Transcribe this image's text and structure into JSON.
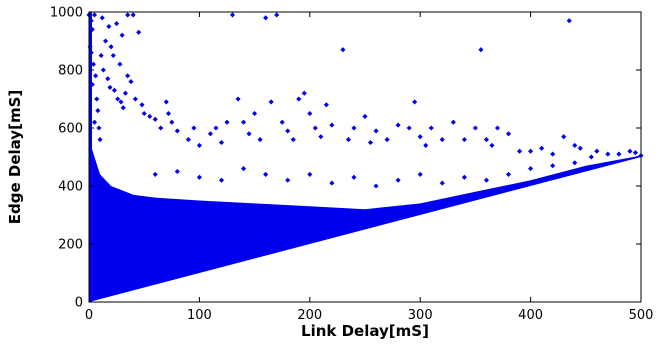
{
  "chart_data": {
    "type": "scatter",
    "title": "",
    "xlabel": "Link Delay[mS]",
    "ylabel": "Edge Delay[mS]",
    "xlim": [
      0,
      500
    ],
    "ylim": [
      0,
      1000
    ],
    "xticks": [
      0,
      100,
      200,
      300,
      400,
      500
    ],
    "yticks": [
      0,
      200,
      400,
      600,
      800,
      1000
    ],
    "grid": false,
    "legend": "none",
    "series": [
      {
        "marker_color": "#0000ee",
        "description_of_density": "points fill region between y=x and upper envelope",
        "points": [
          [
            0,
            990
          ],
          [
            2,
            970
          ],
          [
            3,
            940
          ],
          [
            5,
            990
          ],
          [
            1,
            880
          ],
          [
            2,
            860
          ],
          [
            4,
            820
          ],
          [
            6,
            780
          ],
          [
            3,
            750
          ],
          [
            7,
            700
          ],
          [
            8,
            660
          ],
          [
            5,
            620
          ],
          [
            9,
            600
          ],
          [
            10,
            560
          ],
          [
            12,
            980
          ],
          [
            18,
            950
          ],
          [
            25,
            960
          ],
          [
            30,
            920
          ],
          [
            40,
            990
          ],
          [
            45,
            930
          ],
          [
            20,
            880
          ],
          [
            22,
            850
          ],
          [
            28,
            820
          ],
          [
            35,
            780
          ],
          [
            38,
            760
          ],
          [
            33,
            720
          ],
          [
            42,
            700
          ],
          [
            48,
            680
          ],
          [
            50,
            650
          ],
          [
            55,
            640
          ],
          [
            60,
            630
          ],
          [
            65,
            600
          ],
          [
            70,
            690
          ],
          [
            72,
            650
          ],
          [
            75,
            620
          ],
          [
            80,
            590
          ],
          [
            90,
            560
          ],
          [
            95,
            600
          ],
          [
            100,
            540
          ],
          [
            110,
            580
          ],
          [
            115,
            600
          ],
          [
            120,
            550
          ],
          [
            125,
            620
          ],
          [
            130,
            990
          ],
          [
            135,
            700
          ],
          [
            140,
            620
          ],
          [
            145,
            580
          ],
          [
            150,
            650
          ],
          [
            155,
            560
          ],
          [
            160,
            980
          ],
          [
            165,
            690
          ],
          [
            170,
            990
          ],
          [
            175,
            620
          ],
          [
            180,
            590
          ],
          [
            185,
            560
          ],
          [
            190,
            700
          ],
          [
            195,
            720
          ],
          [
            200,
            650
          ],
          [
            205,
            600
          ],
          [
            210,
            570
          ],
          [
            215,
            680
          ],
          [
            220,
            610
          ],
          [
            230,
            870
          ],
          [
            235,
            560
          ],
          [
            240,
            600
          ],
          [
            250,
            640
          ],
          [
            255,
            550
          ],
          [
            260,
            590
          ],
          [
            270,
            560
          ],
          [
            280,
            610
          ],
          [
            290,
            600
          ],
          [
            295,
            690
          ],
          [
            300,
            570
          ],
          [
            305,
            540
          ],
          [
            310,
            600
          ],
          [
            320,
            560
          ],
          [
            330,
            620
          ],
          [
            340,
            560
          ],
          [
            350,
            600
          ],
          [
            355,
            870
          ],
          [
            360,
            560
          ],
          [
            365,
            540
          ],
          [
            370,
            600
          ],
          [
            380,
            580
          ],
          [
            390,
            520
          ],
          [
            400,
            520
          ],
          [
            410,
            530
          ],
          [
            420,
            510
          ],
          [
            430,
            570
          ],
          [
            435,
            970
          ],
          [
            440,
            540
          ],
          [
            445,
            530
          ],
          [
            455,
            500
          ],
          [
            460,
            520
          ],
          [
            470,
            510
          ],
          [
            480,
            510
          ],
          [
            490,
            520
          ],
          [
            495,
            515
          ],
          [
            500,
            505
          ],
          [
            60,
            440
          ],
          [
            80,
            450
          ],
          [
            100,
            430
          ],
          [
            120,
            420
          ],
          [
            140,
            460
          ],
          [
            160,
            440
          ],
          [
            180,
            420
          ],
          [
            200,
            440
          ],
          [
            220,
            410
          ],
          [
            240,
            430
          ],
          [
            260,
            400
          ],
          [
            280,
            420
          ],
          [
            300,
            440
          ],
          [
            320,
            410
          ],
          [
            340,
            430
          ],
          [
            360,
            420
          ],
          [
            380,
            440
          ],
          [
            400,
            460
          ],
          [
            420,
            470
          ],
          [
            440,
            480
          ],
          [
            35,
            990
          ],
          [
            15,
            900
          ],
          [
            11,
            850
          ],
          [
            13,
            800
          ],
          [
            17,
            770
          ],
          [
            19,
            740
          ],
          [
            23,
            730
          ],
          [
            26,
            700
          ],
          [
            29,
            690
          ],
          [
            31,
            670
          ]
        ]
      }
    ],
    "density_bands": {
      "upper_envelope": [
        [
          0,
          560
        ],
        [
          10,
          440
        ],
        [
          20,
          400
        ],
        [
          40,
          370
        ],
        [
          60,
          360
        ],
        [
          100,
          350
        ],
        [
          150,
          340
        ],
        [
          200,
          330
        ],
        [
          250,
          320
        ],
        [
          300,
          340
        ],
        [
          350,
          380
        ],
        [
          400,
          420
        ],
        [
          450,
          470
        ],
        [
          500,
          505
        ]
      ]
    }
  }
}
